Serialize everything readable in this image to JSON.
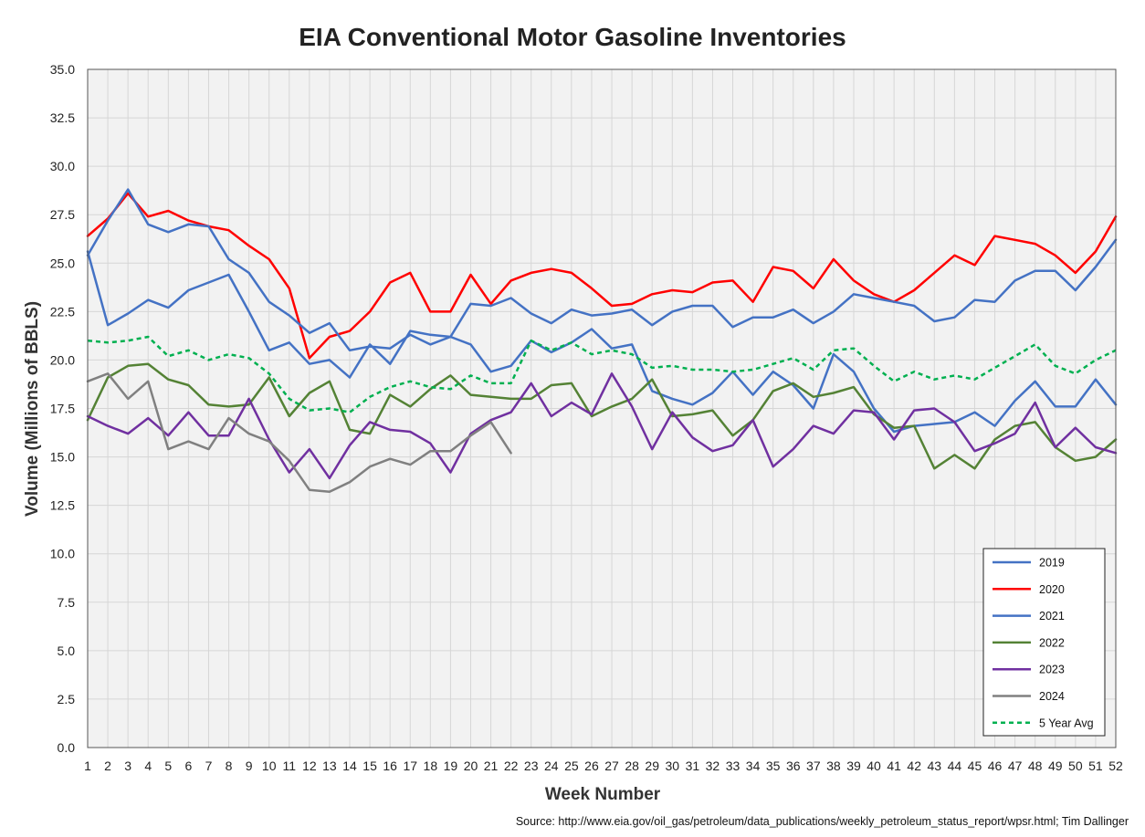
{
  "chart_data": {
    "type": "line",
    "title": "EIA Conventional Motor Gasoline Inventories",
    "xlabel": "Week Number",
    "ylabel": "Volume (Millions of BBLS)",
    "source": "Source: http://www.eia.gov/oil_gas/petroleum/data_publications/weekly_petroleum_status_report/wpsr.html; Tim Dallinger",
    "xlim": [
      1,
      52
    ],
    "ylim": [
      0,
      35
    ],
    "yticks": [
      "0.0",
      "2.5",
      "5.0",
      "7.5",
      "10.0",
      "12.5",
      "15.0",
      "17.5",
      "20.0",
      "22.5",
      "25.0",
      "27.5",
      "30.0",
      "32.5",
      "35.0"
    ],
    "xticks": [
      "1",
      "2",
      "3",
      "4",
      "5",
      "6",
      "7",
      "8",
      "9",
      "10",
      "11",
      "12",
      "13",
      "14",
      "15",
      "16",
      "17",
      "18",
      "19",
      "20",
      "21",
      "22",
      "23",
      "24",
      "25",
      "26",
      "27",
      "28",
      "29",
      "30",
      "31",
      "32",
      "33",
      "34",
      "35",
      "36",
      "37",
      "38",
      "39",
      "40",
      "41",
      "42",
      "43",
      "44",
      "45",
      "46",
      "47",
      "48",
      "49",
      "50",
      "51",
      "52"
    ],
    "grid": true,
    "legend_position": "bottom-right",
    "series": [
      {
        "name": "2019",
        "color": "#4472C4",
        "dash": false,
        "values": [
          25.6,
          21.8,
          22.4,
          23.1,
          22.7,
          23.6,
          24.0,
          24.4,
          22.5,
          20.5,
          20.9,
          19.8,
          20.0,
          19.1,
          20.8,
          19.8,
          21.5,
          21.3,
          21.2,
          20.8,
          19.4,
          19.7,
          21.0,
          20.4,
          20.9,
          21.6,
          20.6,
          20.8,
          18.4,
          18.0,
          17.7,
          18.3,
          19.4,
          18.2,
          19.4,
          18.7,
          17.5,
          20.3,
          19.4,
          17.5,
          16.3,
          16.6,
          16.7,
          16.8,
          17.3,
          16.6,
          17.9,
          18.9,
          17.6,
          17.6,
          19.0,
          17.7
        ]
      },
      {
        "name": "2020",
        "color": "#FF0000",
        "dash": false,
        "values": [
          26.4,
          27.3,
          28.6,
          27.4,
          27.7,
          27.2,
          26.9,
          26.7,
          25.9,
          25.2,
          23.7,
          20.1,
          21.2,
          21.5,
          22.5,
          24.0,
          24.5,
          22.5,
          22.5,
          24.4,
          22.9,
          24.1,
          24.5,
          24.7,
          24.5,
          23.7,
          22.8,
          22.9,
          23.4,
          23.6,
          23.5,
          24.0,
          24.1,
          23.0,
          24.8,
          24.6,
          23.7,
          25.2,
          24.1,
          23.4,
          23.0,
          23.6,
          24.5,
          25.4,
          24.9,
          26.4,
          26.2,
          26.0,
          25.4,
          24.5,
          25.6,
          27.4
        ]
      },
      {
        "name": "2021",
        "color": "#4472C4",
        "dash": false,
        "values": [
          25.4,
          27.2,
          28.8,
          27.0,
          26.6,
          27.0,
          26.9,
          25.2,
          24.5,
          23.0,
          22.3,
          21.4,
          21.9,
          20.5,
          20.7,
          20.6,
          21.3,
          20.8,
          21.2,
          22.9,
          22.8,
          23.2,
          22.4,
          21.9,
          22.6,
          22.3,
          22.4,
          22.6,
          21.8,
          22.5,
          22.8,
          22.8,
          21.7,
          22.2,
          22.2,
          22.6,
          21.9,
          22.5,
          23.4,
          23.2,
          23.0,
          22.8,
          22.0,
          22.2,
          23.1,
          23.0,
          24.1,
          24.6,
          24.6,
          23.6,
          24.8,
          26.2
        ]
      },
      {
        "name": "2022",
        "color": "#548235",
        "dash": false,
        "values": [
          16.9,
          19.1,
          19.7,
          19.8,
          19.0,
          18.7,
          17.7,
          17.6,
          17.7,
          19.1,
          17.1,
          18.3,
          18.9,
          16.4,
          16.2,
          18.2,
          17.6,
          18.5,
          19.2,
          18.2,
          18.1,
          18.0,
          18.0,
          18.7,
          18.8,
          17.1,
          17.6,
          18.0,
          19.0,
          17.1,
          17.2,
          17.4,
          16.1,
          16.9,
          18.4,
          18.8,
          18.1,
          18.3,
          18.6,
          17.2,
          16.5,
          16.6,
          14.4,
          15.1,
          14.4,
          15.9,
          16.6,
          16.8,
          15.5,
          14.8,
          15.0,
          15.9
        ]
      },
      {
        "name": "2023",
        "color": "#7030A0",
        "dash": false,
        "values": [
          17.1,
          16.6,
          16.2,
          17.0,
          16.1,
          17.3,
          16.1,
          16.1,
          18.0,
          15.9,
          14.2,
          15.4,
          13.9,
          15.6,
          16.8,
          16.4,
          16.3,
          15.7,
          14.2,
          16.2,
          16.9,
          17.3,
          18.8,
          17.1,
          17.8,
          17.2,
          19.3,
          17.6,
          15.4,
          17.3,
          16.0,
          15.3,
          15.6,
          16.9,
          14.5,
          15.4,
          16.6,
          16.2,
          17.4,
          17.3,
          15.9,
          17.4,
          17.5,
          16.8,
          15.3,
          15.7,
          16.2,
          17.8,
          15.5,
          16.5,
          15.5,
          15.2
        ]
      },
      {
        "name": "2024",
        "color": "#808080",
        "dash": false,
        "values": [
          18.9,
          19.3,
          18.0,
          18.9,
          15.4,
          15.8,
          15.4,
          17.0,
          16.2,
          15.8,
          14.8,
          13.3,
          13.2,
          13.7,
          14.5,
          14.9,
          14.6,
          15.3,
          15.3,
          16.1,
          16.8,
          15.2
        ]
      },
      {
        "name": "5 Year Avg",
        "color": "#00B050",
        "dash": true,
        "values": [
          21.0,
          20.9,
          21.0,
          21.2,
          20.2,
          20.5,
          20.0,
          20.3,
          20.1,
          19.3,
          18.0,
          17.4,
          17.5,
          17.3,
          18.1,
          18.6,
          18.9,
          18.6,
          18.5,
          19.2,
          18.8,
          18.8,
          21.0,
          20.5,
          20.9,
          20.3,
          20.5,
          20.3,
          19.6,
          19.7,
          19.5,
          19.5,
          19.4,
          19.5,
          19.8,
          20.1,
          19.5,
          20.5,
          20.6,
          19.7,
          18.9,
          19.4,
          19.0,
          19.2,
          19.0,
          19.6,
          20.2,
          20.8,
          19.7,
          19.3,
          20.0,
          20.5
        ]
      }
    ]
  }
}
